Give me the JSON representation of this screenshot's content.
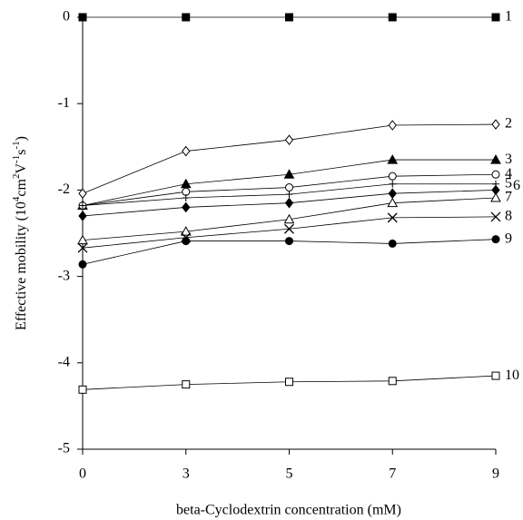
{
  "chart_data": {
    "type": "line",
    "x_label": "beta-Cyclodextrin concentration (mM)",
    "y_label": [
      "Effective mobility (10",
      "4",
      "cm",
      "2",
      "V",
      "-1",
      "s",
      "-1",
      ")"
    ],
    "categories": [
      "0",
      "3",
      "5",
      "7",
      "9"
    ],
    "ylim": [
      -5,
      0
    ],
    "yticks": [
      0,
      -1,
      -2,
      -3,
      -4,
      -5
    ],
    "series": [
      {
        "name": "1",
        "color": "#000000",
        "marker": "square-filled",
        "values": [
          0,
          0,
          0,
          0,
          0
        ]
      },
      {
        "name": "2",
        "color": "#000000",
        "marker": "diamond-open",
        "values": [
          -2.04,
          -1.55,
          -1.42,
          -1.25,
          -1.24
        ]
      },
      {
        "name": "3",
        "color": "#000000",
        "marker": "triangle-filled",
        "values": [
          -2.18,
          -1.93,
          -1.82,
          -1.65,
          -1.65
        ]
      },
      {
        "name": "4",
        "color": "#000000",
        "marker": "circle-open",
        "values": [
          -2.18,
          -2.02,
          -1.97,
          -1.84,
          -1.82
        ]
      },
      {
        "name": "5",
        "color": "#000000",
        "marker": "plus",
        "values": [
          -2.18,
          -2.09,
          -2.05,
          -1.93,
          -1.93
        ]
      },
      {
        "name": "6",
        "color": "#000000",
        "marker": "diamond-filled",
        "values": [
          -2.3,
          -2.2,
          -2.15,
          -2.04,
          -2.0
        ]
      },
      {
        "name": "7",
        "color": "#000000",
        "marker": "triangle-open",
        "values": [
          -2.58,
          -2.48,
          -2.34,
          -2.15,
          -2.09
        ]
      },
      {
        "name": "8",
        "color": "#000000",
        "marker": "x",
        "values": [
          -2.67,
          -2.55,
          -2.45,
          -2.32,
          -2.31
        ]
      },
      {
        "name": "9",
        "color": "#000000",
        "marker": "circle-filled",
        "values": [
          -2.86,
          -2.59,
          -2.59,
          -2.62,
          -2.57
        ]
      },
      {
        "name": "10",
        "color": "#000000",
        "marker": "square-open",
        "values": [
          -4.31,
          -4.25,
          -4.22,
          -4.21,
          -4.15
        ]
      }
    ]
  }
}
